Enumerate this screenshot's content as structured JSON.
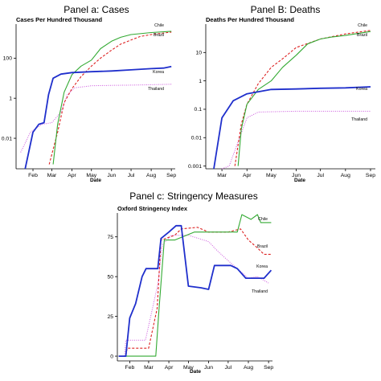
{
  "colors": {
    "Chile": "#33aa33",
    "Brazil": "#dd2222",
    "Korea": "#1f2fcc",
    "Thailand": "#cc55dd"
  },
  "chart_data": [
    {
      "type": "line",
      "panel_title": "Panel a: Cases",
      "title": "Cases Per Hundred Thousand",
      "xlabel": "Date",
      "xticks": [
        "Feb",
        "Mar",
        "Apr",
        "May",
        "Jun",
        "Jul",
        "Aug",
        "Sep"
      ],
      "y_scale": "log",
      "ylim": [
        0.0003,
        5000
      ],
      "yticks": [
        {
          "value": 0.01,
          "label": "0.01"
        },
        {
          "value": 1,
          "label": "1"
        },
        {
          "value": 100,
          "label": "100"
        }
      ],
      "series": [
        {
          "name": "Chile",
          "points": [
            [
              "2020-03-03",
              0.0005
            ],
            [
              "2020-03-10",
              0.05
            ],
            [
              "2020-03-20",
              2
            ],
            [
              "2020-04-01",
              15
            ],
            [
              "2020-04-15",
              40
            ],
            [
              "2020-05-01",
              80
            ],
            [
              "2020-05-15",
              300
            ],
            [
              "2020-06-01",
              700
            ],
            [
              "2020-06-15",
              1100
            ],
            [
              "2020-07-01",
              1500
            ],
            [
              "2020-08-01",
              1900
            ],
            [
              "2020-09-01",
              2200
            ]
          ]
        },
        {
          "name": "Brazil",
          "points": [
            [
              "2020-02-26",
              0.0005
            ],
            [
              "2020-03-10",
              0.02
            ],
            [
              "2020-03-20",
              0.6
            ],
            [
              "2020-04-01",
              3
            ],
            [
              "2020-04-15",
              12
            ],
            [
              "2020-05-01",
              40
            ],
            [
              "2020-05-15",
              100
            ],
            [
              "2020-06-01",
              250
            ],
            [
              "2020-06-15",
              500
            ],
            [
              "2020-07-01",
              800
            ],
            [
              "2020-07-15",
              1200
            ],
            [
              "2020-08-01",
              1500
            ],
            [
              "2020-09-01",
              2000
            ]
          ]
        },
        {
          "name": "Korea",
          "points": [
            [
              "2020-01-20",
              0.0003
            ],
            [
              "2020-02-01",
              0.02
            ],
            [
              "2020-02-10",
              0.05
            ],
            [
              "2020-02-18",
              0.06
            ],
            [
              "2020-02-25",
              1.5
            ],
            [
              "2020-03-03",
              10
            ],
            [
              "2020-03-15",
              16
            ],
            [
              "2020-04-01",
              19
            ],
            [
              "2020-05-01",
              21
            ],
            [
              "2020-06-01",
              23
            ],
            [
              "2020-07-01",
              26
            ],
            [
              "2020-08-01",
              30
            ],
            [
              "2020-08-20",
              32
            ],
            [
              "2020-09-01",
              38
            ]
          ]
        },
        {
          "name": "Thailand",
          "points": [
            [
              "2020-01-13",
              0.002
            ],
            [
              "2020-01-28",
              0.02
            ],
            [
              "2020-02-15",
              0.05
            ],
            [
              "2020-03-01",
              0.06
            ],
            [
              "2020-03-15",
              0.2
            ],
            [
              "2020-03-25",
              1.5
            ],
            [
              "2020-04-05",
              3.3
            ],
            [
              "2020-05-01",
              4.2
            ],
            [
              "2020-06-01",
              4.4
            ],
            [
              "2020-07-01",
              4.5
            ],
            [
              "2020-08-01",
              4.7
            ],
            [
              "2020-09-01",
              5
            ]
          ]
        }
      ]
    },
    {
      "type": "line",
      "panel_title": "Panel B: Deaths",
      "title": "Deaths Per Hundred Thousand",
      "xlabel": "Date",
      "xticks": [
        "Mar",
        "Apr",
        "May",
        "Jun",
        "Jul",
        "Aug",
        "Sep"
      ],
      "y_scale": "log",
      "ylim": [
        0.0008,
        100
      ],
      "yticks": [
        {
          "value": 0.001,
          "label": "0.001"
        },
        {
          "value": 0.01,
          "label": "0.01"
        },
        {
          "value": 0.1,
          "label": "0.1"
        },
        {
          "value": 1,
          "label": "1"
        },
        {
          "value": 10,
          "label": "10"
        }
      ],
      "series": [
        {
          "name": "Chile",
          "points": [
            [
              "2020-03-21",
              0.001
            ],
            [
              "2020-03-25",
              0.02
            ],
            [
              "2020-04-01",
              0.15
            ],
            [
              "2020-04-15",
              0.5
            ],
            [
              "2020-05-01",
              1
            ],
            [
              "2020-05-15",
              3
            ],
            [
              "2020-06-01",
              8
            ],
            [
              "2020-06-15",
              20
            ],
            [
              "2020-07-01",
              30
            ],
            [
              "2020-07-15",
              35
            ],
            [
              "2020-08-01",
              40
            ],
            [
              "2020-09-01",
              55
            ]
          ]
        },
        {
          "name": "Brazil",
          "points": [
            [
              "2020-03-17",
              0.001
            ],
            [
              "2020-03-25",
              0.03
            ],
            [
              "2020-04-01",
              0.15
            ],
            [
              "2020-04-15",
              0.8
            ],
            [
              "2020-05-01",
              3
            ],
            [
              "2020-05-15",
              6
            ],
            [
              "2020-06-01",
              15
            ],
            [
              "2020-07-01",
              30
            ],
            [
              "2020-08-01",
              45
            ],
            [
              "2020-09-01",
              60
            ]
          ]
        },
        {
          "name": "Korea",
          "points": [
            [
              "2020-02-20",
              0.0008
            ],
            [
              "2020-03-01",
              0.05
            ],
            [
              "2020-03-15",
              0.2
            ],
            [
              "2020-04-01",
              0.35
            ],
            [
              "2020-05-01",
              0.5
            ],
            [
              "2020-06-01",
              0.52
            ],
            [
              "2020-07-01",
              0.55
            ],
            [
              "2020-08-01",
              0.57
            ],
            [
              "2020-09-01",
              0.62
            ]
          ]
        },
        {
          "name": "Thailand",
          "points": [
            [
              "2020-03-01",
              0.0008
            ],
            [
              "2020-03-10",
              0.001
            ],
            [
              "2020-04-01",
              0.05
            ],
            [
              "2020-04-15",
              0.08
            ],
            [
              "2020-06-01",
              0.085
            ],
            [
              "2020-09-01",
              0.085
            ]
          ]
        }
      ]
    },
    {
      "type": "line",
      "panel_title": "Panel c: Stringency Measures",
      "title": "Oxford Stringency Index",
      "xlabel": "Date",
      "xticks": [
        "Feb",
        "Mar",
        "Apr",
        "May",
        "Jun",
        "Jul",
        "Aug",
        "Sep"
      ],
      "y_scale": "linear",
      "ylim": [
        -3,
        90
      ],
      "yticks": [
        {
          "value": 0,
          "label": "0"
        },
        {
          "value": 25,
          "label": "25"
        },
        {
          "value": 50,
          "label": "50"
        },
        {
          "value": 75,
          "label": "75"
        }
      ],
      "series": [
        {
          "name": "Chile",
          "points": [
            [
              "2020-01-15",
              0
            ],
            [
              "2020-03-12",
              0
            ],
            [
              "2020-03-17",
              30
            ],
            [
              "2020-03-25",
              73
            ],
            [
              "2020-04-10",
              73
            ],
            [
              "2020-05-10",
              78
            ],
            [
              "2020-07-15",
              78
            ],
            [
              "2020-07-22",
              89
            ],
            [
              "2020-08-05",
              86
            ],
            [
              "2020-08-15",
              89
            ],
            [
              "2020-08-20",
              84
            ],
            [
              "2020-09-05",
              84
            ]
          ]
        },
        {
          "name": "Brazil",
          "points": [
            [
              "2020-01-15",
              0
            ],
            [
              "2020-01-26",
              0
            ],
            [
              "2020-01-28",
              5
            ],
            [
              "2020-03-01",
              5
            ],
            [
              "2020-03-14",
              30
            ],
            [
              "2020-03-20",
              73
            ],
            [
              "2020-04-10",
              76
            ],
            [
              "2020-04-20",
              80
            ],
            [
              "2020-05-15",
              81
            ],
            [
              "2020-06-01",
              78
            ],
            [
              "2020-07-01",
              78
            ],
            [
              "2020-07-20",
              80
            ],
            [
              "2020-08-01",
              73
            ],
            [
              "2020-08-15",
              68
            ],
            [
              "2020-08-25",
              64
            ],
            [
              "2020-09-05",
              64
            ]
          ]
        },
        {
          "name": "Korea",
          "points": [
            [
              "2020-01-15",
              0
            ],
            [
              "2020-01-26",
              0
            ],
            [
              "2020-02-01",
              24
            ],
            [
              "2020-02-10",
              33
            ],
            [
              "2020-02-20",
              50
            ],
            [
              "2020-02-26",
              55
            ],
            [
              "2020-03-15",
              55
            ],
            [
              "2020-03-20",
              74
            ],
            [
              "2020-04-01",
              78
            ],
            [
              "2020-04-12",
              82
            ],
            [
              "2020-04-20",
              82
            ],
            [
              "2020-05-01",
              44
            ],
            [
              "2020-05-20",
              43
            ],
            [
              "2020-06-01",
              42
            ],
            [
              "2020-06-10",
              57
            ],
            [
              "2020-07-05",
              57
            ],
            [
              "2020-07-15",
              55
            ],
            [
              "2020-07-28",
              49
            ],
            [
              "2020-08-25",
              49
            ],
            [
              "2020-09-05",
              54
            ]
          ]
        },
        {
          "name": "Thailand",
          "points": [
            [
              "2020-01-15",
              0
            ],
            [
              "2020-01-24",
              0
            ],
            [
              "2020-01-26",
              10
            ],
            [
              "2020-02-25",
              10
            ],
            [
              "2020-03-15",
              45
            ],
            [
              "2020-03-22",
              70
            ],
            [
              "2020-04-05",
              76
            ],
            [
              "2020-05-01",
              76
            ],
            [
              "2020-06-01",
              72
            ],
            [
              "2020-06-15",
              66
            ],
            [
              "2020-07-01",
              60
            ],
            [
              "2020-08-01",
              49
            ],
            [
              "2020-08-15",
              50
            ],
            [
              "2020-09-01",
              46
            ]
          ]
        }
      ]
    }
  ]
}
